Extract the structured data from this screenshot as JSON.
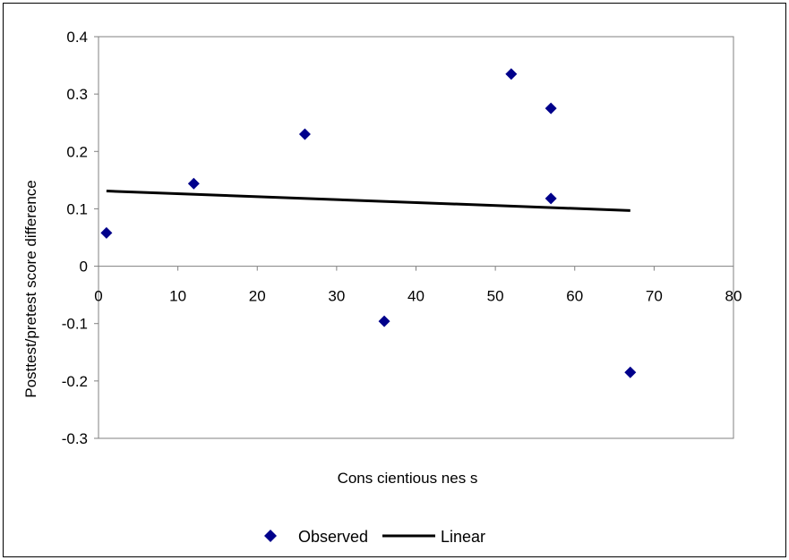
{
  "chart_data": {
    "type": "scatter",
    "xlabel": "Cons cientious nes s",
    "ylabel": "Posttest/pretest score difference",
    "xlim": [
      0,
      80
    ],
    "ylim": [
      -0.3,
      0.4
    ],
    "x_ticks": [
      "0",
      "10",
      "20",
      "30",
      "40",
      "50",
      "60",
      "70",
      "80"
    ],
    "y_ticks": [
      "0.4",
      "0.3",
      "0.2",
      "0.1",
      "0",
      "-0.1",
      "-0.2",
      "-0.3"
    ],
    "grid": false,
    "legend_position": "bottom",
    "series": [
      {
        "name": "Observed",
        "kind": "scatter",
        "marker": "diamond",
        "color": "#00008b",
        "points": [
          {
            "x": 1,
            "y": 0.058
          },
          {
            "x": 12,
            "y": 0.144
          },
          {
            "x": 26,
            "y": 0.23
          },
          {
            "x": 36,
            "y": -0.096
          },
          {
            "x": 52,
            "y": 0.335
          },
          {
            "x": 57,
            "y": 0.275
          },
          {
            "x": 57,
            "y": 0.118
          },
          {
            "x": 67,
            "y": -0.185
          }
        ]
      },
      {
        "name": "Linear",
        "kind": "line",
        "color": "#000000",
        "points": [
          {
            "x": 1,
            "y": 0.131
          },
          {
            "x": 67,
            "y": 0.097
          }
        ]
      }
    ]
  }
}
